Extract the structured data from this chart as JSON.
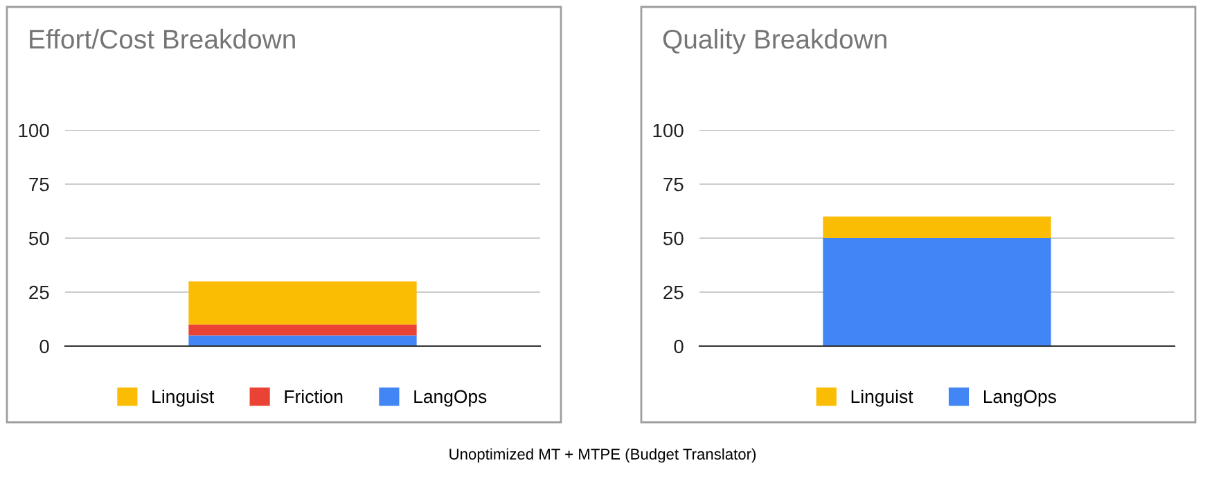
{
  "chart_data": [
    {
      "type": "bar",
      "title": "Effort/Cost Breakdown",
      "categories": [
        null
      ],
      "stacked": true,
      "ylim": [
        0,
        100
      ],
      "yticks": [
        0,
        25,
        50,
        75,
        100
      ],
      "grid": "y",
      "legend": "bottom",
      "tick_labels": "y",
      "series": [
        {
          "name": "LangOps",
          "color": "#4285f4",
          "values": [
            5
          ]
        },
        {
          "name": "Friction",
          "color": "#ea4335",
          "values": [
            5
          ]
        },
        {
          "name": "Linguist",
          "color": "#fbbc04",
          "values": [
            20
          ]
        }
      ],
      "annotations": [
        "Unoptimized MT + MTPE (Budget Translator)"
      ]
    },
    {
      "type": "bar",
      "title": "Quality Breakdown",
      "categories": [
        null
      ],
      "stacked": true,
      "ylim": [
        0,
        100
      ],
      "yticks": [
        0,
        25,
        50,
        75,
        100
      ],
      "grid": "y",
      "legend": "bottom",
      "tick_labels": "y",
      "series": [
        {
          "name": "LangOps",
          "color": "#4285f4",
          "values": [
            50
          ]
        },
        {
          "name": "Linguist",
          "color": "#fbbc04",
          "values": [
            10
          ]
        }
      ]
    }
  ]
}
